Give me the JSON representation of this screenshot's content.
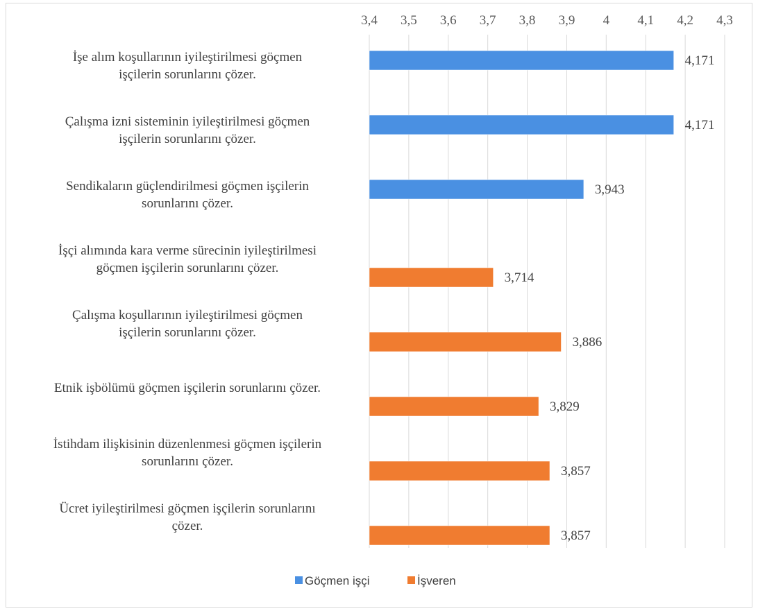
{
  "chart_data": {
    "type": "bar",
    "orientation": "horizontal",
    "xlim": [
      3.4,
      4.3
    ],
    "ticks": [
      "3,4",
      "3,5",
      "3,6",
      "3,7",
      "3,8",
      "3,9",
      "4",
      "4,1",
      "4,2",
      "4,3"
    ],
    "tick_values": [
      3.4,
      3.5,
      3.6,
      3.7,
      3.8,
      3.9,
      4.0,
      4.1,
      4.2,
      4.3
    ],
    "grid": true,
    "legend_position": "bottom",
    "categories": [
      [
        "İşe alım koşullarının iyileştirilmesi göçmen",
        "işçilerin sorunlarını çözer."
      ],
      [
        "Çalışma izni sisteminin iyileştirilmesi göçmen",
        "işçilerin sorunlarını çözer."
      ],
      [
        "Sendikaların güçlendirilmesi göçmen işçilerin",
        "sorunlarını çözer."
      ],
      [
        "İşçi alımında kara verme sürecinin iyileştirilmesi",
        "göçmen işçilerin sorunlarını çözer."
      ],
      [
        "Çalışma koşullarının iyileştirilmesi göçmen",
        "işçilerin sorunlarını çözer."
      ],
      [
        "Etnik işbölümü göçmen işçilerin sorunlarını çözer."
      ],
      [
        "İstihdam ilişkisinin düzenlenmesi göçmen işçilerin",
        "sorunlarını çözer."
      ],
      [
        "Ücret iyileştirilmesi göçmen işçilerin sorunlarını",
        "çözer."
      ]
    ],
    "series": [
      {
        "name": "Göçmen işçi",
        "color": "#4a90e2",
        "values": [
          4.171,
          4.171,
          3.943,
          null,
          null,
          null,
          null,
          null
        ],
        "labels": [
          "4,171",
          "4,171",
          "3,943",
          "",
          "",
          "",
          "",
          ""
        ]
      },
      {
        "name": "İşveren",
        "color": "#f07c30",
        "values": [
          null,
          null,
          null,
          3.714,
          3.886,
          3.829,
          3.857,
          3.857
        ],
        "labels": [
          "",
          "",
          "",
          "3,714",
          "3,886",
          "3,829",
          "3,857",
          "3,857"
        ]
      }
    ]
  }
}
